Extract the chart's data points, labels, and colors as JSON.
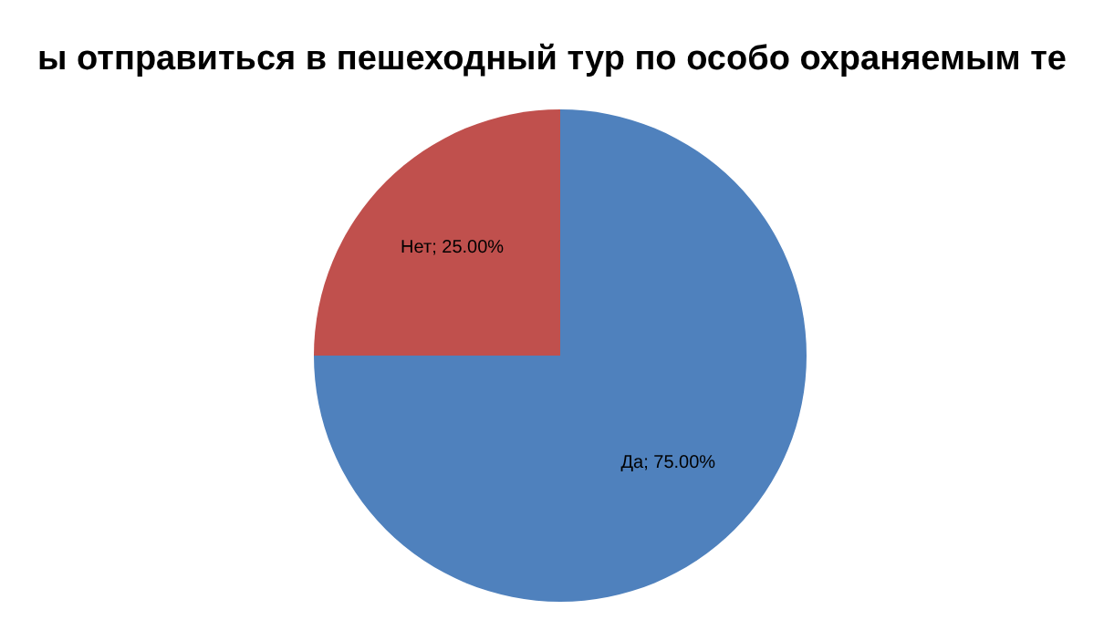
{
  "chart_data": {
    "type": "pie",
    "title": "ы отправиться в пешеходный тур по особо охраняемым те",
    "categories": [
      "Да",
      "Нет"
    ],
    "values": [
      75,
      25
    ],
    "colors": [
      "#4f81bd",
      "#c0504d"
    ],
    "value_labels": [
      "75.00%",
      "25.00%"
    ],
    "legend": false
  }
}
